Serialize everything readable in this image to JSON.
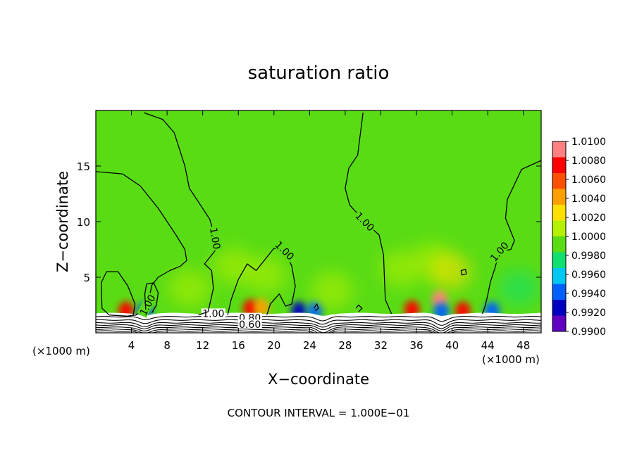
{
  "chart_data": {
    "type": "heatmap",
    "title": "saturation ratio",
    "xlabel": "X−coordinate",
    "ylabel": "Z−coordinate",
    "x_unit_left": "(×1000 m)",
    "x_unit_right": "(×1000 m)",
    "xlim": [
      0,
      50
    ],
    "ylim": [
      0,
      20
    ],
    "x_ticks": [
      "4",
      "8",
      "12",
      "16",
      "20",
      "24",
      "28",
      "32",
      "36",
      "40",
      "44",
      "48"
    ],
    "x_tick_values": [
      4,
      8,
      12,
      16,
      20,
      24,
      28,
      32,
      36,
      40,
      44,
      48
    ],
    "y_ticks": [
      "5",
      "10",
      "15"
    ],
    "y_tick_values": [
      5,
      10,
      15
    ],
    "footer": "CONTOUR INTERVAL = 1.000E−01",
    "colorbar": {
      "labels": [
        "1.0100",
        "1.0080",
        "1.0060",
        "1.0040",
        "1.0020",
        "1.0000",
        "0.9980",
        "0.9960",
        "0.9940",
        "0.9920",
        "0.9900"
      ],
      "colors": [
        "#ff8080",
        "#ff0000",
        "#ff5000",
        "#ffa000",
        "#ffe000",
        "#b4f000",
        "#5adc14",
        "#10e070",
        "#00c8f0",
        "#0060ff",
        "#0000c0",
        "#6000c0"
      ]
    },
    "background_value": 1.0,
    "contour_lines": [
      {
        "label": "1.00",
        "points": [
          [
            0,
            14.5
          ],
          [
            3,
            14.3
          ],
          [
            5,
            13.2
          ],
          [
            7,
            11.2
          ],
          [
            9,
            8.8
          ],
          [
            10,
            7.5
          ],
          [
            10.2,
            6.5
          ],
          [
            9.5,
            6
          ],
          [
            8.3,
            5.6
          ],
          [
            7,
            5
          ],
          [
            6.3,
            4.3
          ],
          [
            5.8,
            2.5
          ],
          [
            4.5,
            1.6
          ],
          [
            3.5,
            1.5
          ],
          [
            1.5,
            1.6
          ],
          [
            0.7,
            2.2
          ],
          [
            0.6,
            4.5
          ],
          [
            1.2,
            5.5
          ],
          [
            2.5,
            5.5
          ],
          [
            3.6,
            4.2
          ],
          [
            4.4,
            2.6
          ],
          [
            4.2,
            1.6
          ]
        ]
      },
      {
        "label": "1.00",
        "points": [
          [
            5.4,
            19.8
          ],
          [
            7.5,
            19.2
          ],
          [
            8.8,
            18
          ],
          [
            10,
            15
          ],
          [
            10.5,
            13
          ],
          [
            11.5,
            11.8
          ],
          [
            12.8,
            10.2
          ],
          [
            13.4,
            8.5
          ],
          [
            13.4,
            7.4
          ],
          [
            12.2,
            6.2
          ],
          [
            13,
            5.6
          ],
          [
            13.2,
            4
          ],
          [
            12.6,
            1.9
          ],
          [
            11.5,
            1.6
          ]
        ]
      },
      {
        "label": "",
        "points": [
          [
            5.6,
            2.1
          ],
          [
            5.5,
            3.5
          ],
          [
            5.7,
            4.4
          ],
          [
            6.5,
            4.5
          ],
          [
            7,
            3.6
          ],
          [
            6.8,
            2.5
          ],
          [
            6.3,
            1.8
          ]
        ]
      },
      {
        "label": "1.00",
        "points": [
          [
            14.8,
            1.6
          ],
          [
            15.2,
            3
          ],
          [
            16,
            4.8
          ],
          [
            17,
            6.2
          ],
          [
            18,
            5.6
          ],
          [
            19.4,
            7
          ],
          [
            20,
            7.6
          ],
          [
            21.2,
            7.4
          ],
          [
            22,
            6
          ],
          [
            22.4,
            4.2
          ],
          [
            22,
            2.6
          ],
          [
            21.3,
            2.4
          ],
          [
            20.6,
            3.5
          ],
          [
            19.6,
            2.6
          ],
          [
            19.2,
            1.6
          ]
        ]
      },
      {
        "label": "1.00",
        "points": [
          [
            30,
            19.8
          ],
          [
            29.4,
            16
          ],
          [
            28.4,
            14.8
          ],
          [
            28,
            13
          ],
          [
            28.5,
            11.5
          ],
          [
            30.2,
            10
          ],
          [
            31.8,
            8.8
          ],
          [
            32.3,
            7
          ],
          [
            32.4,
            5
          ],
          [
            32.5,
            3
          ],
          [
            33.2,
            1.7
          ]
        ]
      },
      {
        "label": "1.00",
        "points": [
          [
            50,
            15.5
          ],
          [
            47.8,
            14.7
          ],
          [
            46.2,
            12
          ],
          [
            46,
            10.3
          ],
          [
            47,
            8.3
          ],
          [
            46.6,
            7.5
          ],
          [
            45.3,
            7.3
          ],
          [
            44.8,
            5.8
          ],
          [
            44.3,
            4.6
          ],
          [
            44,
            3.4
          ],
          [
            43.7,
            2.4
          ],
          [
            43.4,
            1.7
          ]
        ]
      },
      {
        "label": "",
        "points": [
          [
            41,
            5.6
          ],
          [
            41.5,
            5.7
          ],
          [
            41.6,
            5.3
          ],
          [
            41.1,
            5.2
          ],
          [
            41,
            5.6
          ]
        ]
      },
      {
        "label": "",
        "points": [
          [
            24.5,
            2.2
          ],
          [
            24.8,
            2.6
          ],
          [
            25,
            2.2
          ],
          [
            24.6,
            2
          ]
        ]
      },
      {
        "label": "",
        "points": [
          [
            29.2,
            2.2
          ],
          [
            29.5,
            2.5
          ],
          [
            29.9,
            2.2
          ],
          [
            29.5,
            1.9
          ]
        ]
      }
    ],
    "surface_labels": [
      "1.00",
      "0.80",
      "0.60"
    ],
    "anomalies": [
      {
        "x": 3.4,
        "z": 2.0,
        "value": 1.009
      },
      {
        "x": 5.5,
        "z": 1.9,
        "value": 0.993
      },
      {
        "x": 17.4,
        "z": 2.2,
        "value": 1.0085
      },
      {
        "x": 18.6,
        "z": 2.3,
        "value": 1.005
      },
      {
        "x": 22.8,
        "z": 2.0,
        "value": 0.992
      },
      {
        "x": 24.6,
        "z": 2.0,
        "value": 0.9945
      },
      {
        "x": 35.5,
        "z": 2.1,
        "value": 1.0085
      },
      {
        "x": 38.6,
        "z": 3.0,
        "value": 1.0095
      },
      {
        "x": 38.8,
        "z": 1.9,
        "value": 0.993
      },
      {
        "x": 41.2,
        "z": 2.0,
        "value": 1.0085
      },
      {
        "x": 44.5,
        "z": 2.0,
        "value": 0.993
      },
      {
        "x": 37.8,
        "z": 6.5,
        "value": 1.0015
      },
      {
        "x": 39.8,
        "z": 5.5,
        "value": 1.0025
      },
      {
        "x": 34.3,
        "z": 5.8,
        "value": 1.0015
      },
      {
        "x": 26.5,
        "z": 3.8,
        "value": 1.0015
      },
      {
        "x": 19.0,
        "z": 5.2,
        "value": 1.0015
      },
      {
        "x": 10.5,
        "z": 4.0,
        "value": 1.0015
      },
      {
        "x": 2.0,
        "z": 7.5,
        "value": 0.9985
      },
      {
        "x": 47.5,
        "z": 4.0,
        "value": 0.9965
      },
      {
        "x": 15.5,
        "z": 6.0,
        "value": 1.0015
      }
    ]
  }
}
